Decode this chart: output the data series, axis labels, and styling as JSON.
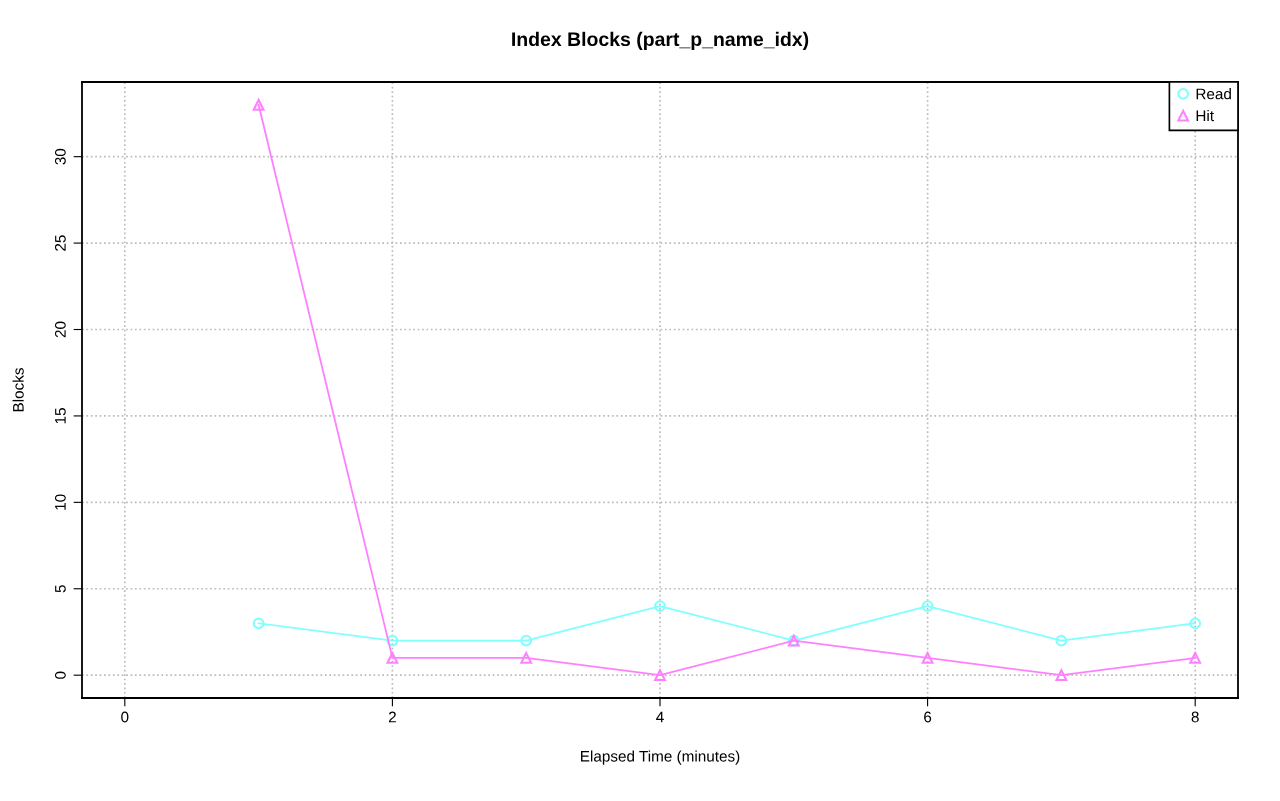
{
  "chart_data": {
    "type": "line",
    "title": "Index Blocks (part_p_name_idx)",
    "xlabel": "Elapsed Time (minutes)",
    "ylabel": "Blocks",
    "x": [
      1,
      2,
      3,
      4,
      5,
      6,
      7,
      8
    ],
    "series": [
      {
        "name": "Read",
        "color": "#80ffff",
        "marker": "circle",
        "values": [
          3,
          2,
          2,
          4,
          2,
          4,
          2,
          3
        ]
      },
      {
        "name": "Hit",
        "color": "#ff80ff",
        "marker": "triangle",
        "values": [
          33,
          1,
          1,
          0,
          2,
          1,
          0,
          1
        ]
      }
    ],
    "xlim": [
      -0.32,
      8.32
    ],
    "xticks": [
      0,
      2,
      4,
      6,
      8
    ],
    "ylim": [
      -1.32,
      34.32
    ],
    "yticks": [
      0,
      5,
      10,
      15,
      20,
      25,
      30
    ],
    "grid": true,
    "legend": "top right",
    "line_style": "solid"
  }
}
